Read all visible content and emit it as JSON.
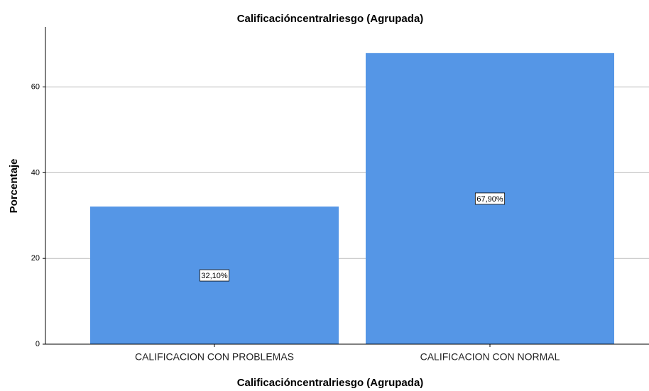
{
  "chart_data": {
    "type": "bar",
    "title": "Calificacióncentralriesgo (Agrupada)",
    "x_label": "Calificacióncentralriesgo (Agrupada)",
    "y_label": "Porcentaje",
    "categories": [
      "CALIFICACION CON PROBLEMAS",
      "CALIFICACION CON NORMAL"
    ],
    "values": [
      32.1,
      67.9
    ],
    "value_labels": [
      "32,10%",
      "67,90%"
    ],
    "color": "#5596e6",
    "ylim": [
      0,
      74
    ],
    "yticks": [
      0,
      20,
      40,
      60
    ],
    "grid": true
  }
}
